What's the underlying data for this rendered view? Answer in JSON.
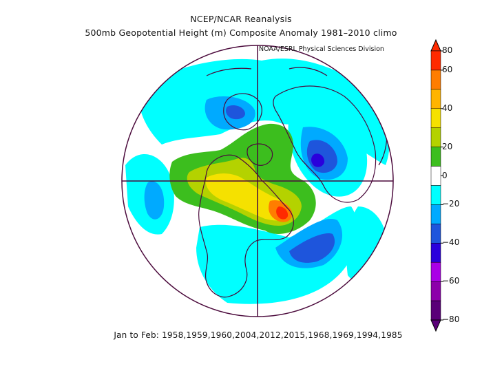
{
  "title_line1": "NCEP/NCAR Reanalysis",
  "title_line2": "500mb Geopotential Height (m) Composite Anomaly 1981–2010 climo",
  "credit": "NOAA/ESRL Physical Sciences Division",
  "footer": "Jan to Feb: 1958,1959,1960,2004,2012,2015,1968,1969,1994,1985",
  "colorbar": {
    "labels": [
      "80",
      "60",
      "40",
      "20",
      "0",
      "−20",
      "−40",
      "−60",
      "−80"
    ],
    "bins": [
      {
        "range": "60 to 80",
        "color": "#ff2a00"
      },
      {
        "range": "50 to 60",
        "color": "#ff7d00"
      },
      {
        "range": "40 to 50",
        "color": "#ffb400"
      },
      {
        "range": "30 to 40",
        "color": "#f5e100"
      },
      {
        "range": "20 to 30",
        "color": "#b4d200"
      },
      {
        "range": "10 to 20",
        "color": "#3cbe1e"
      },
      {
        "range": "-10 to 10",
        "color": "#ffffff"
      },
      {
        "range": "-20 to -10",
        "color": "#00ffff"
      },
      {
        "range": "-30 to -20",
        "color": "#00aaff"
      },
      {
        "range": "-40 to -30",
        "color": "#1e55dc"
      },
      {
        "range": "-50 to -40",
        "color": "#2a00dc"
      },
      {
        "range": "-60 to -50",
        "color": "#aa00e6"
      },
      {
        "range": "-70 to -60",
        "color": "#8c00aa"
      },
      {
        "range": "-80 to -70",
        "color": "#5a0078"
      }
    ]
  },
  "map": {
    "projection": "polar stereographic, North Pole centered",
    "coastline_color": "#4b0a3c"
  }
}
